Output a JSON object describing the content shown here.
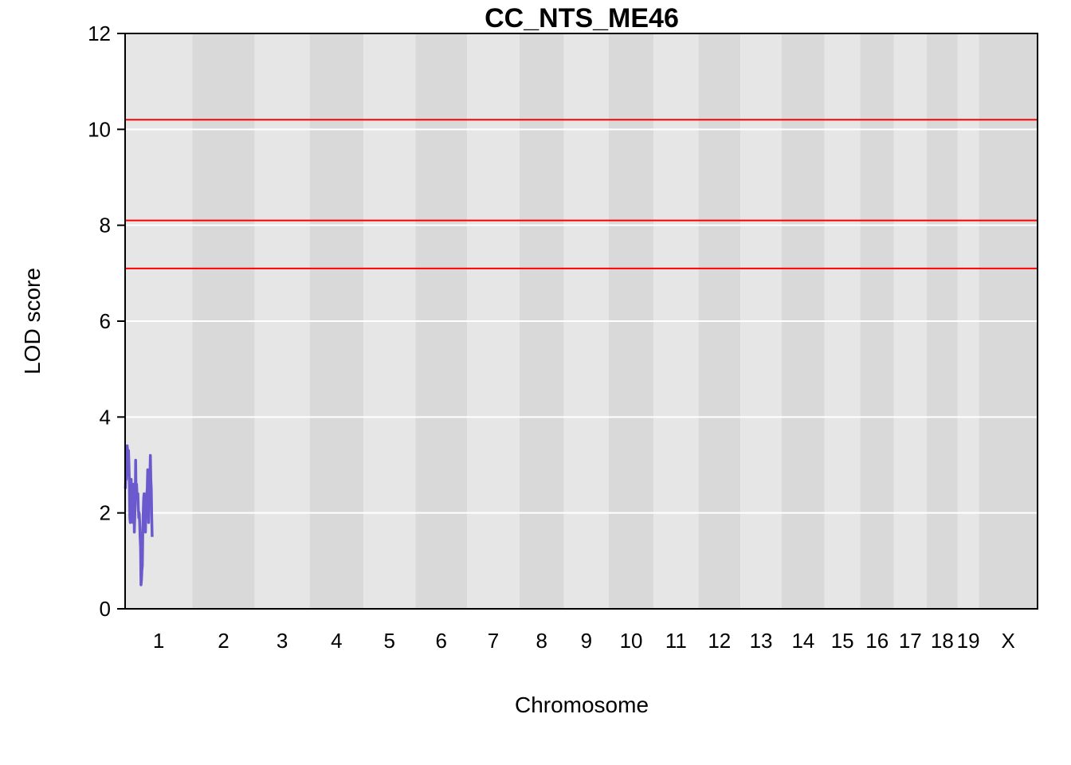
{
  "chart_data": {
    "type": "line",
    "title": "CC_NTS_ME46",
    "xlabel": "Chromosome",
    "ylabel": "LOD score",
    "ylim": [
      0,
      12
    ],
    "yticks": [
      0,
      2,
      4,
      6,
      8,
      10,
      12
    ],
    "gridlines": [
      2,
      4,
      6,
      8,
      10
    ],
    "threshold_lines": [
      7.1,
      8.1,
      10.2
    ],
    "colors": {
      "line": "#6A5ACD",
      "threshold": "#FF0000",
      "band_light": "#E6E6E6",
      "band_dark": "#D9D9D9",
      "grid": "#FFFFFF"
    },
    "chromosomes": [
      {
        "name": "1",
        "start": 0.0,
        "end": 195.5
      },
      {
        "name": "2",
        "start": 195.5,
        "end": 377.6
      },
      {
        "name": "3",
        "start": 377.6,
        "end": 537.6
      },
      {
        "name": "4",
        "start": 537.6,
        "end": 694.1
      },
      {
        "name": "5",
        "start": 694.1,
        "end": 846.0
      },
      {
        "name": "6",
        "start": 846.0,
        "end": 995.8
      },
      {
        "name": "7",
        "start": 995.8,
        "end": 1148.6
      },
      {
        "name": "8",
        "start": 1148.6,
        "end": 1278.0
      },
      {
        "name": "9",
        "start": 1278.0,
        "end": 1408.7
      },
      {
        "name": "10",
        "start": 1408.7,
        "end": 1539.0
      },
      {
        "name": "11",
        "start": 1539.0,
        "end": 1670.0
      },
      {
        "name": "12",
        "start": 1670.0,
        "end": 1791.9
      },
      {
        "name": "13",
        "start": 1791.9,
        "end": 1912.4
      },
      {
        "name": "14",
        "start": 1912.4,
        "end": 2037.3
      },
      {
        "name": "15",
        "start": 2037.3,
        "end": 2141.1
      },
      {
        "name": "16",
        "start": 2141.1,
        "end": 2239.3
      },
      {
        "name": "17",
        "start": 2239.3,
        "end": 2334.3
      },
      {
        "name": "18",
        "start": 2334.3,
        "end": 2425.0
      },
      {
        "name": "19",
        "start": 2425.0,
        "end": 2486.4
      },
      {
        "name": "X",
        "start": 2486.4,
        "end": 2657.4
      }
    ],
    "series": [
      {
        "values": [
          [
            0.8,
            2.5
          ],
          [
            2.1,
            2.8
          ],
          [
            3.4,
            2.7
          ],
          [
            4.7,
            3.0
          ],
          [
            6.0,
            3.4
          ],
          [
            7.3,
            3.3
          ],
          [
            8.6,
            2.8
          ],
          [
            9.9,
            3.3
          ],
          [
            11.2,
            3.0
          ],
          [
            12.5,
            2.6
          ],
          [
            13.8,
            1.9
          ],
          [
            15.1,
            1.8
          ],
          [
            16.4,
            2.5
          ],
          [
            17.7,
            2.7
          ],
          [
            19.0,
            1.9
          ],
          [
            20.3,
            2.6
          ],
          [
            21.6,
            2.6
          ],
          [
            22.9,
            1.8
          ],
          [
            24.2,
            2.5
          ],
          [
            25.5,
            2.6
          ],
          [
            26.8,
            1.6
          ],
          [
            28.1,
            1.9
          ],
          [
            29.4,
            2.2
          ],
          [
            30.7,
            3.1
          ],
          [
            32.0,
            2.3
          ],
          [
            33.3,
            2.6
          ],
          [
            34.6,
            2.4
          ],
          [
            35.9,
            2.3
          ],
          [
            37.2,
            2.4
          ],
          [
            38.5,
            2.1
          ],
          [
            39.8,
            1.9
          ],
          [
            41.1,
            2.0
          ],
          [
            42.4,
            1.8
          ],
          [
            43.7,
            1.5
          ],
          [
            45.0,
            1.3
          ],
          [
            46.3,
            0.5
          ],
          [
            47.6,
            0.6
          ],
          [
            48.9,
            0.8
          ],
          [
            50.2,
            0.9
          ],
          [
            51.5,
            1.6
          ],
          [
            52.8,
            2.0
          ],
          [
            54.1,
            2.3
          ],
          [
            55.4,
            2.4
          ],
          [
            56.7,
            2.3
          ],
          [
            58.0,
            2.2
          ],
          [
            59.3,
            1.6
          ],
          [
            60.6,
            2.1
          ],
          [
            61.9,
            2.1
          ],
          [
            63.2,
            2.4
          ],
          [
            64.5,
            2.5
          ],
          [
            65.8,
            2.9
          ],
          [
            67.1,
            2.3
          ],
          [
            68.4,
            1.8
          ],
          [
            69.7,
            2.6
          ],
          [
            71.0,
            2.3
          ],
          [
            72.3,
            2.8
          ],
          [
            73.6,
            3.2
          ],
          [
            74.9,
            2.7
          ],
          [
            76.2,
            2.5
          ],
          [
            77.5,
            1.9
          ],
          [
            78.8,
            1.5
          ]
        ]
      }
    ]
  }
}
